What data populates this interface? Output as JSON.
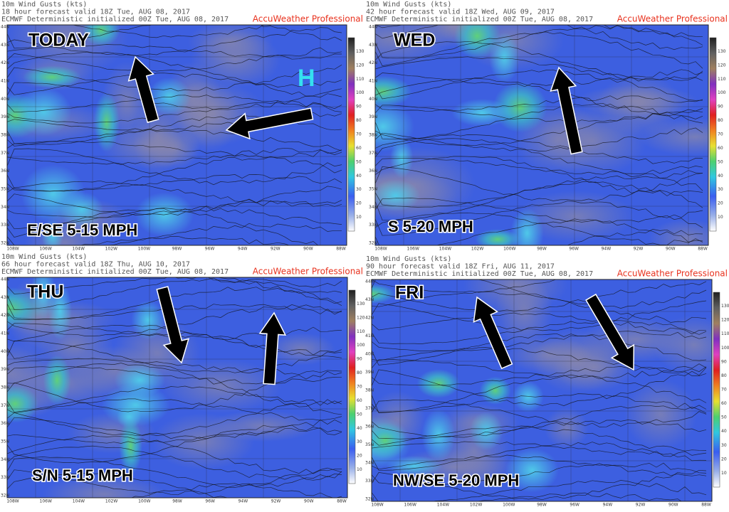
{
  "map_axes": {
    "latitudes": [
      "32N",
      "33N",
      "34N",
      "35N",
      "36N",
      "37N",
      "38N",
      "39N",
      "40N",
      "41N",
      "42N",
      "43N",
      "44N"
    ],
    "longitudes": [
      "108W",
      "106W",
      "104W",
      "102W",
      "100W",
      "98W",
      "96W",
      "94W",
      "92W",
      "90W",
      "88W"
    ],
    "colorbar_ticks": [
      "10",
      "20",
      "30",
      "40",
      "50",
      "60",
      "70",
      "80",
      "90",
      "100",
      "110",
      "120",
      "130"
    ]
  },
  "panels": [
    {
      "header": [
        "10m Wind Gusts (kts)",
        "18 hour forecast valid 18Z Tue, AUG 08, 2017",
        "ECMWF Deterministic initialized 00Z Tue, AUG 08, 2017"
      ],
      "brand": "AccuWeather Professional",
      "day": "TODAY",
      "wind": "E/SE 5-15 MPH",
      "pressure": "H"
    },
    {
      "header": [
        "10m Wind Gusts (kts)",
        "42 hour forecast valid 18Z Wed, AUG 09, 2017",
        "ECMWF Deterministic initialized 00Z Tue, AUG 08, 2017"
      ],
      "brand": "AccuWeather Professional",
      "day": "WED",
      "wind": "S 5-20 MPH"
    },
    {
      "header": [
        "10m Wind Gusts (kts)",
        "66 hour forecast valid 18Z Thu, AUG 10, 2017",
        "ECMWF Deterministic initialized 00Z Tue, AUG 08, 2017"
      ],
      "brand": "AccuWeather Professional",
      "day": "THU",
      "wind": "S/N 5-15 MPH"
    },
    {
      "header": [
        "10m Wind Gusts (kts)",
        "90 hour forecast valid 18Z Fri, AUG 11, 2017",
        "ECMWF Deterministic initialized 00Z Tue, AUG 08, 2017"
      ],
      "brand": "AccuWeather Professional",
      "day": "FRI",
      "wind": "NW/SE 5-20 MPH"
    }
  ]
}
